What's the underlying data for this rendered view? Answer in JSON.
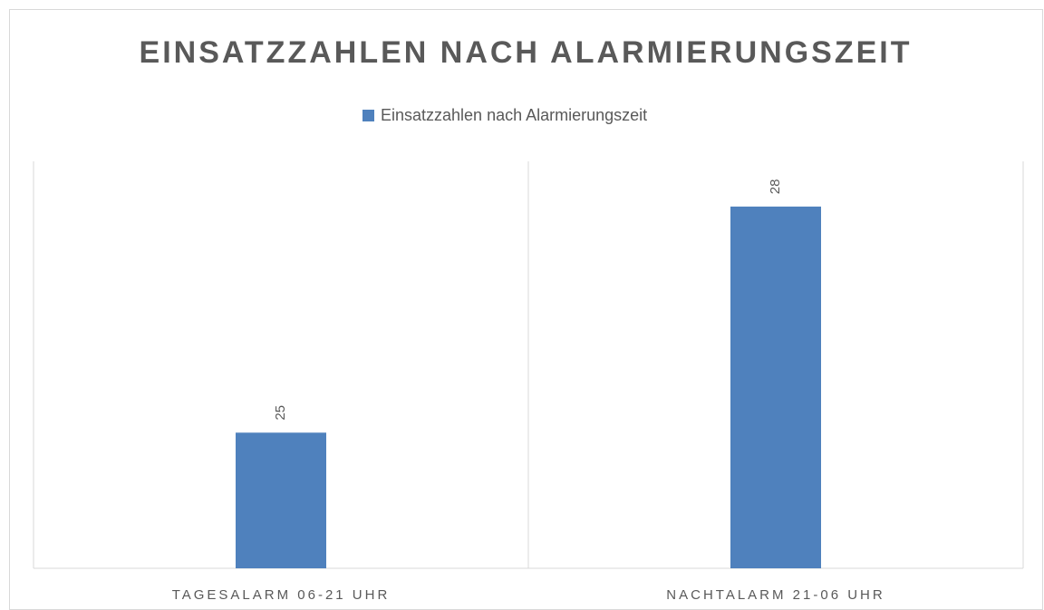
{
  "chart_data": {
    "type": "bar",
    "title": "EINSATZZAHLEN NACH ALARMIERUNGSZEIT",
    "categories": [
      "TAGESALARM 06-21 UHR",
      "NACHTALARM 21-06 UHR"
    ],
    "series": [
      {
        "name": "Einsatzzahlen nach Alarmierungszeit",
        "color": "#4f81bd",
        "values": [
          25,
          28
        ]
      }
    ],
    "ylim": [
      23.2,
      28.6
    ],
    "grid": false
  }
}
